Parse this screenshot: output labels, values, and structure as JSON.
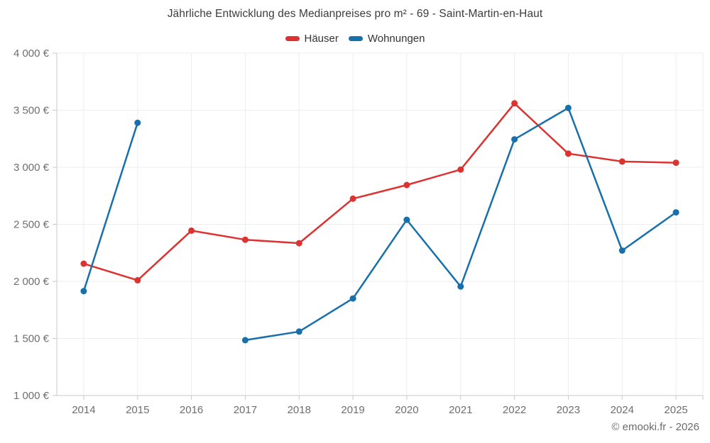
{
  "title": "Jährliche Entwicklung des Medianpreises pro m² - 69 - Saint-Martin-en-Haut",
  "footer": "© emooki.fr - 2026",
  "colors": {
    "haeuser": "#dc3232",
    "wohnungen": "#1770ab",
    "grid": "#ededed",
    "axis": "#c9c9c9",
    "axis_label": "#6e6e6e",
    "title_text": "#3c3c3c"
  },
  "legend": {
    "items": [
      {
        "label": "Häuser",
        "color": "#dc3232"
      },
      {
        "label": "Wohnungen",
        "color": "#1770ab"
      }
    ]
  },
  "chart_data": {
    "type": "line",
    "title": "Jährliche Entwicklung des Medianpreises pro m² - 69 - Saint-Martin-en-Haut",
    "categories": [
      "2014",
      "2015",
      "2016",
      "2017",
      "2018",
      "2019",
      "2020",
      "2021",
      "2022",
      "2023",
      "2024",
      "2025"
    ],
    "series": [
      {
        "name": "Häuser",
        "color": "#dc3232",
        "values": [
          2155,
          2010,
          2445,
          2365,
          2335,
          2725,
          2845,
          2980,
          3560,
          3120,
          3050,
          3040
        ]
      },
      {
        "name": "Wohnungen",
        "color": "#1770ab",
        "values": [
          1915,
          3390,
          null,
          1485,
          1560,
          1850,
          2540,
          1955,
          3245,
          3520,
          2270,
          2605
        ]
      }
    ],
    "xlabel": "",
    "ylabel": "",
    "ylim": [
      1000,
      4000
    ],
    "yticks": [
      {
        "value": 1000,
        "label": "1 000 €"
      },
      {
        "value": 1500,
        "label": "1 500 €"
      },
      {
        "value": 2000,
        "label": "2 000 €"
      },
      {
        "value": 2500,
        "label": "2 500 €"
      },
      {
        "value": 3000,
        "label": "3 000 €"
      },
      {
        "value": 3500,
        "label": "3 500 €"
      },
      {
        "value": 4000,
        "label": "4 000 €"
      }
    ],
    "grid": true,
    "legend_position": "top"
  }
}
